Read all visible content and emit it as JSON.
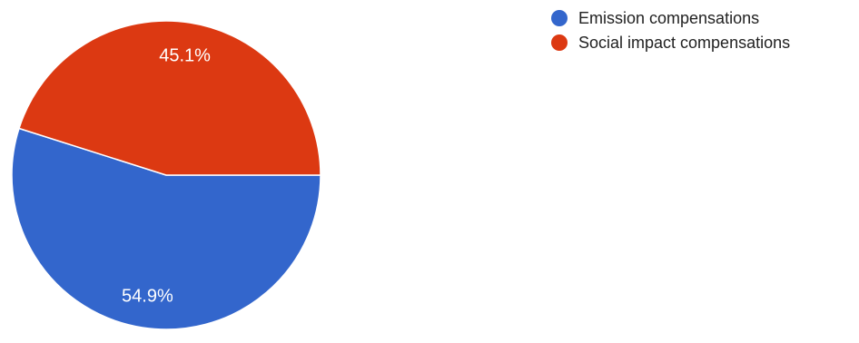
{
  "chart_data": {
    "type": "pie",
    "title": "",
    "categories": [
      "Emission compensations",
      "Social impact compensations"
    ],
    "values": [
      54.9,
      45.1
    ],
    "labels": [
      "54.9%",
      "45.1%"
    ],
    "colors": [
      "#3366cc",
      "#dc3912"
    ],
    "legend": {
      "position": "right",
      "entries": [
        "Emission compensations",
        "Social impact compensations"
      ]
    },
    "start_angle_deg": 90,
    "direction": "clockwise"
  }
}
